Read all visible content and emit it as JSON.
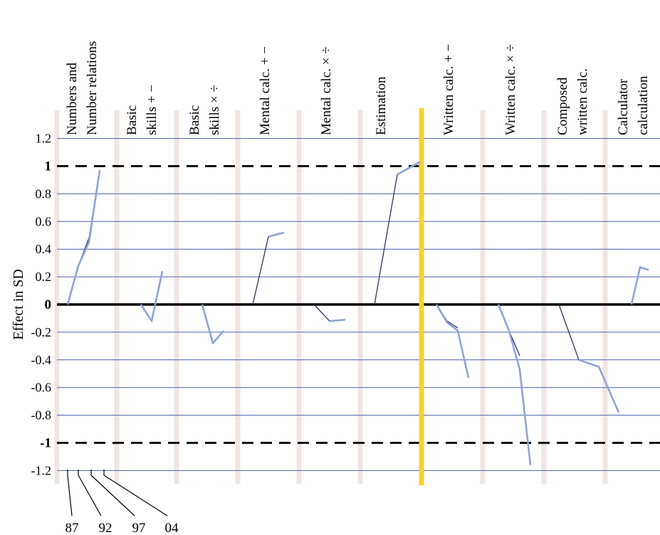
{
  "chart_data": {
    "type": "line",
    "ylabel": "Effect in SD",
    "ylim": [
      -1.3,
      1.4
    ],
    "yticks": [
      "1.2",
      "1",
      "0.8",
      "0.6",
      "0.4",
      "0.2",
      "0",
      "-0.2",
      "-0.4",
      "-0.6",
      "-0.8",
      "-1",
      "-1.2"
    ],
    "ytick_values": [
      1.2,
      1.0,
      0.8,
      0.6,
      0.4,
      0.2,
      0,
      -0.2,
      -0.4,
      -0.6,
      -0.8,
      -1.0,
      -1.2
    ],
    "bold_ticks": [
      "1",
      "0",
      "-1"
    ],
    "reference_lines": [
      1,
      -1
    ],
    "time_labels": [
      "87",
      "92",
      "97",
      "04"
    ],
    "time_values": [
      1987,
      1992,
      1997,
      2004
    ],
    "categories": [
      {
        "label1": "Numbers and",
        "label2": "Number relations",
        "lines": [
          {
            "tone": "dark",
            "values": [
              0,
              0.28,
              0.48,
              0.97
            ]
          },
          {
            "tone": "light",
            "values": [
              0,
              0.28,
              0.45,
              0.97
            ]
          }
        ]
      },
      {
        "label1": "Basic",
        "label2": "skills + −",
        "lines": [
          {
            "tone": "dark",
            "values": [
              0,
              -0.12,
              0.24
            ]
          },
          {
            "tone": "light",
            "values": [
              0,
              -0.12,
              0.24
            ]
          }
        ]
      },
      {
        "label1": "Basic",
        "label2": "skills × ÷",
        "lines": [
          {
            "tone": "dark",
            "values": [
              0,
              -0.28,
              -0.19
            ]
          },
          {
            "tone": "light",
            "values": [
              0,
              -0.28,
              -0.19
            ]
          }
        ]
      },
      {
        "label1": "Mental calc. + −",
        "label2": "",
        "lines": [
          {
            "tone": "dark",
            "values": [
              0,
              0.49,
              0.52
            ]
          },
          {
            "tone": "light",
            "values": [
              0.49,
              0.52
            ]
          }
        ]
      },
      {
        "label1": "Mental calc. × ÷",
        "label2": "",
        "lines": [
          {
            "tone": "dark",
            "values": [
              0,
              -0.12,
              -0.11
            ]
          },
          {
            "tone": "light",
            "values": [
              -0.12,
              -0.11
            ]
          }
        ]
      },
      {
        "label1": "Estimation",
        "label2": "",
        "lines": [
          {
            "tone": "dark",
            "values": [
              0,
              0.94,
              1.03
            ]
          },
          {
            "tone": "light",
            "values": [
              0.94,
              1.03
            ]
          }
        ]
      },
      {
        "label1": "Written calc. + −",
        "label2": "",
        "lines": [
          {
            "tone": "dark",
            "values": [
              0,
              -0.12,
              -0.17
            ]
          },
          {
            "tone": "light",
            "values": [
              0,
              -0.13,
              -0.19,
              -0.53
            ]
          }
        ]
      },
      {
        "label1": "Written calc. × ÷",
        "label2": "",
        "lines": [
          {
            "tone": "dark",
            "values": [
              0,
              -0.19,
              -0.37
            ]
          },
          {
            "tone": "light",
            "values": [
              0,
              -0.19,
              -0.47,
              -1.16
            ]
          }
        ]
      },
      {
        "label1": "Composed",
        "label2": "written calc.",
        "lines": [
          {
            "tone": "dark",
            "values": [
              0,
              -0.4,
              -0.45
            ]
          },
          {
            "tone": "light",
            "values": [
              -0.4,
              -0.45,
              -0.78
            ]
          }
        ]
      },
      {
        "label1": "Calculator",
        "label2": "calculation",
        "lines": [
          {
            "tone": "dark",
            "values": [
              0,
              0.27,
              0.25
            ]
          },
          {
            "tone": "light",
            "values": [
              0,
              0.27,
              0.25
            ]
          }
        ]
      }
    ],
    "colors": {
      "grid": "#4a5fa8",
      "zero_line": "#000000",
      "reference_dash": "#111111",
      "separator": "#efe6e2",
      "divider": "#f8d230",
      "line_dark": "#2c3560",
      "line_light": "#8fa3d6"
    }
  }
}
